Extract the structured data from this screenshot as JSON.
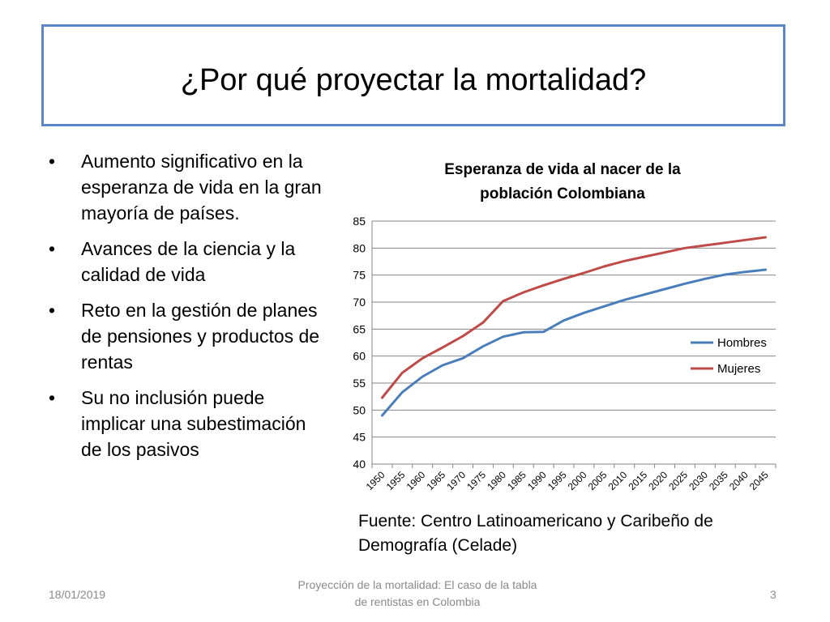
{
  "slide": {
    "title": "¿Por qué proyectar la mortalidad?",
    "bullets": [
      "Aumento significativo en la esperanza de vida en la gran mayoría de países.",
      "Avances de la ciencia y la calidad de vida",
      "Reto en la gestión de planes de pensiones y productos de rentas",
      "Su no inclusión puede implicar una subestimación de los pasivos"
    ],
    "bullet_symbol": "•",
    "source": "Fuente: Centro Latinoamericano y Caribeño de Demografía (Celade)"
  },
  "footer": {
    "date": "18/01/2019",
    "center": "Proyección de la mortalidad: El caso de la tabla de rentistas en Colombia",
    "page": "3"
  },
  "chart_data": {
    "type": "line",
    "title": "Esperanza de vida al nacer de la población Colombiana",
    "title_lines": [
      "Esperanza de vida al nacer de la",
      "población Colombiana"
    ],
    "xlabel": "",
    "ylabel": "",
    "categories": [
      "1950",
      "1955",
      "1960",
      "1965",
      "1970",
      "1975",
      "1980",
      "1985",
      "1990",
      "1995",
      "2000",
      "2005",
      "2010",
      "2015",
      "2020",
      "2025",
      "2030",
      "2035",
      "2040",
      "2045"
    ],
    "ylim": [
      40,
      85
    ],
    "yticks": [
      40,
      45,
      50,
      55,
      60,
      65,
      70,
      75,
      80,
      85
    ],
    "grid": true,
    "legend_position": "right",
    "series": [
      {
        "name": "Hombres",
        "color": "#4a7ebb",
        "values": [
          49.0,
          53.3,
          56.2,
          58.3,
          59.6,
          61.8,
          63.6,
          64.4,
          64.5,
          66.6,
          68.0,
          69.2,
          70.4,
          71.4,
          72.4,
          73.4,
          74.3,
          75.1,
          75.6,
          76.0
        ]
      },
      {
        "name": "Mujeres",
        "color": "#be4b48",
        "values": [
          52.3,
          56.9,
          59.6,
          61.6,
          63.7,
          66.2,
          70.2,
          71.8,
          73.1,
          74.3,
          75.4,
          76.6,
          77.6,
          78.4,
          79.2,
          80.0,
          80.5,
          81.0,
          81.5,
          82.0
        ]
      }
    ]
  }
}
